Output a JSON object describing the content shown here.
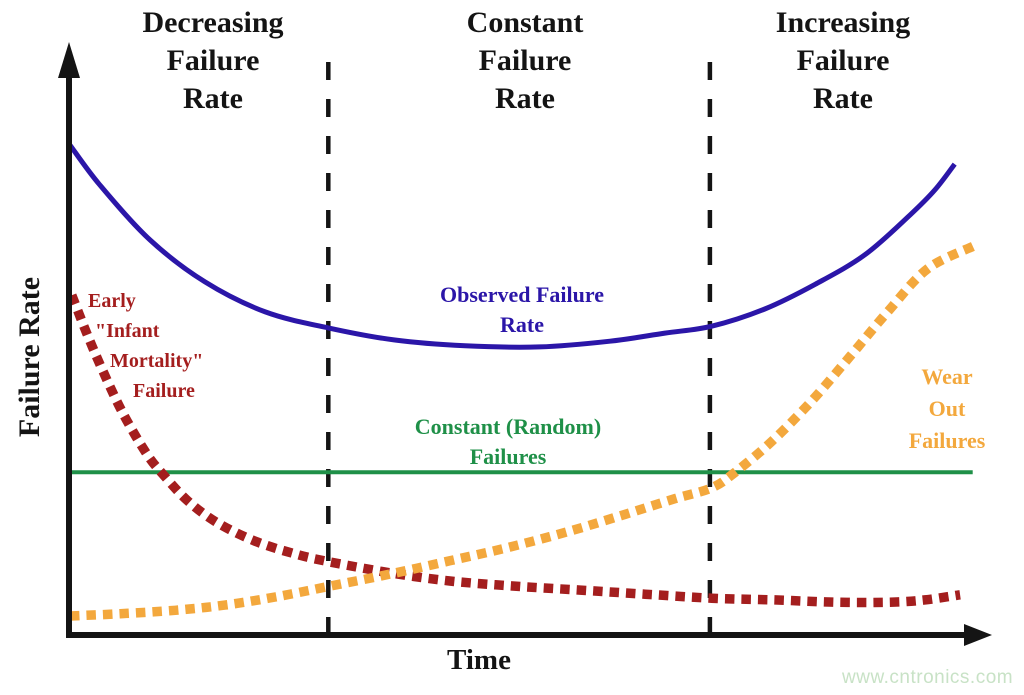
{
  "figure": {
    "region_titles": [
      {
        "id": "decreasing",
        "text": "Decreasing\nFailure\nRate"
      },
      {
        "id": "constant",
        "text": "Constant\nFailure\nRate"
      },
      {
        "id": "increasing",
        "text": "Increasing\nFailure\nRate"
      }
    ],
    "y_axis_label": "Failure Rate",
    "x_axis_label": "Time",
    "watermark": "www.cntronics.com"
  },
  "curve_labels": {
    "observed": "Observed Failure\nRate",
    "constant_random": "Constant (Random)\nFailures",
    "wear_out": "Wear Out\nFailures",
    "infant_mortality_lines": [
      "Early",
      "\"Infant",
      "Mortality\"",
      "Failure"
    ]
  },
  "colors": {
    "observed": "#2b16a8",
    "infant_mortality": "#a41e1e",
    "wear_out": "#f3a83d",
    "constant_random": "#1f9048",
    "axis": "#141414",
    "watermark": "#c8e2c6"
  },
  "chart_data": {
    "type": "line",
    "title": "Bathtub curve: failure rate vs time",
    "xlabel": "Time",
    "ylabel": "Failure Rate",
    "grid": false,
    "axis_ticks": "none",
    "x_range_norm": [
      0,
      100
    ],
    "y_range_norm": [
      0,
      100
    ],
    "regions": [
      "Decreasing Failure Rate",
      "Constant Failure Rate",
      "Increasing Failure Rate"
    ],
    "region_boundaries_x": [
      28.7,
      71.1
    ],
    "series": [
      {
        "id": "constant_random",
        "name": "Constant (Random) Failures",
        "style": "solid",
        "color": "#1f9048",
        "stroke_width": 4,
        "points": [
          [
            0,
            28.3
          ],
          [
            100.3,
            28.3
          ]
        ]
      },
      {
        "id": "observed",
        "name": "Observed Failure Rate",
        "style": "solid",
        "color": "#2b16a8",
        "stroke_width": 5,
        "points": [
          [
            0,
            85.2
          ],
          [
            3.3,
            78.3
          ],
          [
            8.9,
            68.7
          ],
          [
            15.0,
            61.4
          ],
          [
            21.7,
            56.2
          ],
          [
            28.7,
            53.4
          ],
          [
            36.1,
            51.3
          ],
          [
            43.9,
            50.3
          ],
          [
            52.2,
            50.1
          ],
          [
            60.0,
            51.1
          ],
          [
            66.1,
            52.5
          ],
          [
            71.3,
            53.7
          ],
          [
            77.2,
            56.7
          ],
          [
            82.8,
            61.0
          ],
          [
            88.3,
            66.1
          ],
          [
            93.3,
            73.0
          ],
          [
            96.1,
            77.4
          ],
          [
            98.3,
            81.9
          ]
        ]
      },
      {
        "id": "infant_mortality",
        "name": "Early \"Infant Mortality\" Failure",
        "style": "dotted",
        "color": "#a41e1e",
        "stroke_width": 9.5,
        "dash": [
          9.5,
          7
        ],
        "points": [
          [
            0.2,
            59.1
          ],
          [
            1.8,
            52.7
          ],
          [
            3.6,
            46.1
          ],
          [
            5.8,
            38.8
          ],
          [
            8.4,
            31.8
          ],
          [
            10.3,
            28.0
          ],
          [
            13.1,
            23.3
          ],
          [
            16.4,
            19.5
          ],
          [
            20.6,
            16.3
          ],
          [
            25.0,
            14.1
          ],
          [
            28.9,
            12.7
          ],
          [
            35.6,
            10.8
          ],
          [
            42.2,
            9.4
          ],
          [
            49.4,
            8.5
          ],
          [
            56.7,
            7.8
          ],
          [
            63.9,
            7.1
          ],
          [
            71.3,
            6.4
          ],
          [
            78.3,
            6.1
          ],
          [
            85.0,
            5.7
          ],
          [
            91.1,
            5.7
          ],
          [
            95.0,
            6.1
          ],
          [
            98.9,
            7.0
          ]
        ]
      },
      {
        "id": "wear_out",
        "name": "Wear Out Failures",
        "style": "dotted",
        "color": "#f3a83d",
        "stroke_width": 9.5,
        "dash": [
          9.5,
          7
        ],
        "points": [
          [
            0,
            3.3
          ],
          [
            5.6,
            3.7
          ],
          [
            11.7,
            4.3
          ],
          [
            17.2,
            5.2
          ],
          [
            22.8,
            6.6
          ],
          [
            28.9,
            8.5
          ],
          [
            35.6,
            10.6
          ],
          [
            42.2,
            12.9
          ],
          [
            48.9,
            15.3
          ],
          [
            55.6,
            18.1
          ],
          [
            61.7,
            21.0
          ],
          [
            67.2,
            23.7
          ],
          [
            71.3,
            25.6
          ],
          [
            73.9,
            28.3
          ],
          [
            78.0,
            33.7
          ],
          [
            82.4,
            40.7
          ],
          [
            86.7,
            48.5
          ],
          [
            90.9,
            56.3
          ],
          [
            95.3,
            63.7
          ],
          [
            100.5,
            67.7
          ]
        ]
      }
    ]
  }
}
